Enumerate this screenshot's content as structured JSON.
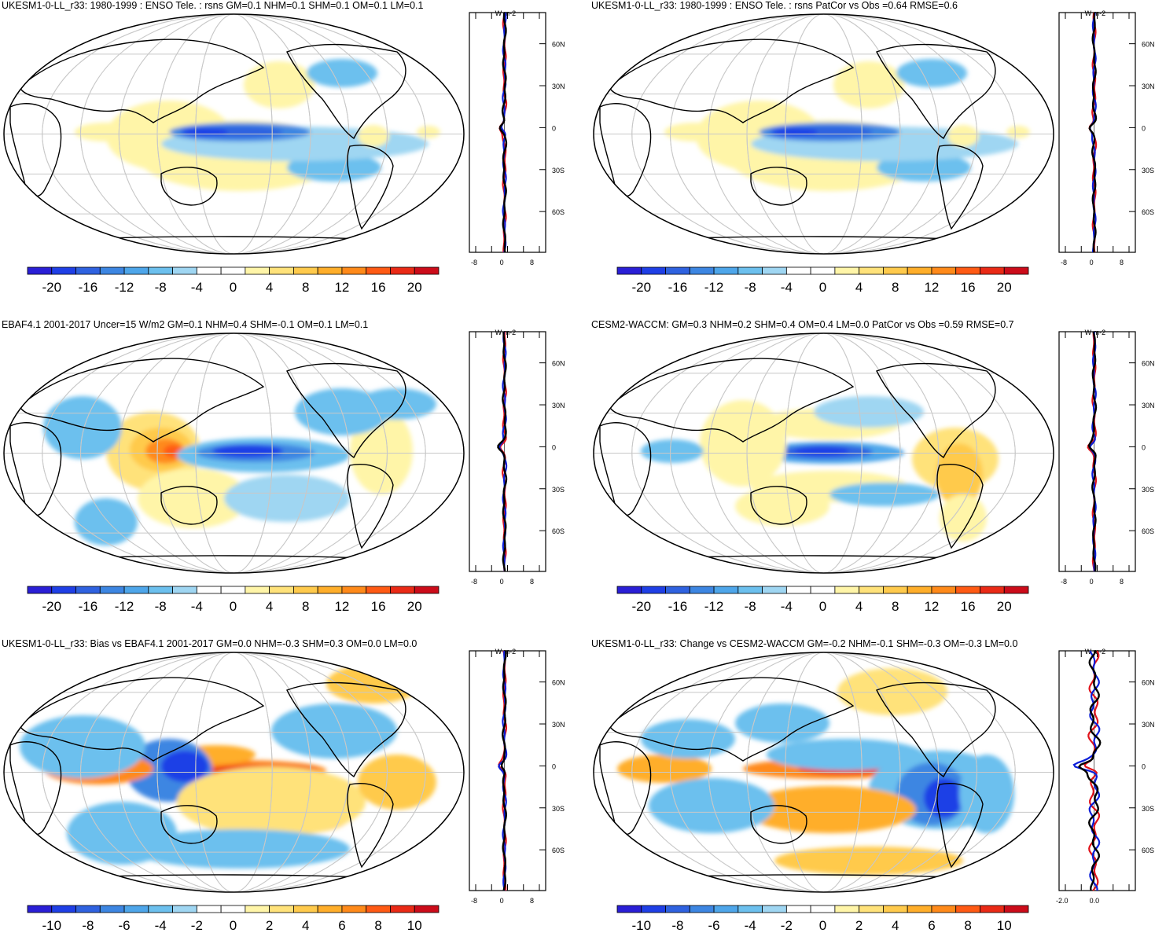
{
  "panels": [
    {
      "title": "UKESM1-0-LL_r33: 1980-1999 : ENSO Tele. : rsns GM=0.1 NHM=0.1 SHM=0.1 OM=0.1 LM=0.1",
      "colorbar_labels": [
        "-20",
        "-16",
        "-12",
        "-8",
        "-4",
        "0",
        "4",
        "8",
        "12",
        "16",
        "20"
      ],
      "zonal_units": "W m-2",
      "zonal_x_ticks": [
        "-8",
        "0",
        "8"
      ],
      "lat_labels": [
        "60N",
        "30N",
        "0",
        "30S",
        "60S"
      ],
      "pattern": "enso"
    },
    {
      "title": "UKESM1-0-LL_r33: 1980-1999 : ENSO Tele. : rsns PatCor vs Obs =0.64 RMSE=0.6",
      "colorbar_labels": [
        "-20",
        "-16",
        "-12",
        "-8",
        "-4",
        "0",
        "4",
        "8",
        "12",
        "16",
        "20"
      ],
      "zonal_units": "W m-2",
      "zonal_x_ticks": [
        "-8",
        "0",
        "8"
      ],
      "lat_labels": [
        "60N",
        "30N",
        "0",
        "30S",
        "60S"
      ],
      "pattern": "enso"
    },
    {
      "title": "EBAF4.1 2001-2017 Uncer=15 W/m2 GM=0.1 NHM=0.4 SHM=-0.1 OM=0.1 LM=0.1",
      "colorbar_labels": [
        "-20",
        "-16",
        "-12",
        "-8",
        "-4",
        "0",
        "4",
        "8",
        "12",
        "16",
        "20"
      ],
      "zonal_units": "W m-2",
      "zonal_x_ticks": [
        "-8",
        "0",
        "8"
      ],
      "lat_labels": [
        "60N",
        "30N",
        "0",
        "30S",
        "60S"
      ],
      "pattern": "obs"
    },
    {
      "title": "CESM2-WACCM: GM=0.3 NHM=0.2 SHM=0.4 OM=0.4 LM=0.0 PatCor vs Obs =0.59 RMSE=0.7",
      "colorbar_labels": [
        "-20",
        "-16",
        "-12",
        "-8",
        "-4",
        "0",
        "4",
        "8",
        "12",
        "16",
        "20"
      ],
      "zonal_units": "W m-2",
      "zonal_x_ticks": [
        "-8",
        "0",
        "8"
      ],
      "lat_labels": [
        "60N",
        "30N",
        "0",
        "30S",
        "60S"
      ],
      "pattern": "cesm"
    },
    {
      "title": "UKESM1-0-LL_r33: Bias vs EBAF4.1 2001-2017 GM=0.0 NHM=-0.3 SHM=0.3 OM=0.0 LM=0.0",
      "colorbar_labels": [
        "-10",
        "-8",
        "-6",
        "-4",
        "-2",
        "0",
        "2",
        "4",
        "6",
        "8",
        "10"
      ],
      "zonal_units": "W m-2",
      "zonal_x_ticks": [
        "-8",
        "0",
        "8"
      ],
      "lat_labels": [
        "60N",
        "30N",
        "0",
        "30S",
        "60S"
      ],
      "pattern": "bias"
    },
    {
      "title": "UKESM1-0-LL_r33: Change vs CESM2-WACCM GM=-0.2 NHM=-0.1 SHM=-0.3 OM=-0.3 LM=0.0",
      "colorbar_labels": [
        "-10",
        "-8",
        "-6",
        "-4",
        "-2",
        "0",
        "2",
        "4",
        "6",
        "8",
        "10"
      ],
      "zonal_units": "W m-2",
      "zonal_x_ticks": [
        "-2.0",
        "0.0"
      ],
      "lat_labels": [
        "60N",
        "30N",
        "0",
        "30S",
        "60S"
      ],
      "pattern": "change"
    }
  ],
  "colors": {
    "palette": [
      "#2a1fd6",
      "#1f3fe6",
      "#2f62e0",
      "#3d86e2",
      "#4ea6ea",
      "#6cc0ee",
      "#9fd6f2",
      "#ffffff",
      "#ffffff",
      "#fff5a8",
      "#ffe27a",
      "#ffca4c",
      "#ffae2a",
      "#ff8a1a",
      "#ff5a14",
      "#ea2a16",
      "#cc0c1a"
    ],
    "ocean_grid": "#c8c8c8",
    "zonal_model": "#0a1ed8",
    "zonal_obs": "#e0141c",
    "zonal_mean": "#000000"
  },
  "chart_data": [
    {
      "type": "heatmap",
      "title": "UKESM1-0-LL_r33: 1980-1999 : ENSO Tele. : rsns GM=0.1 NHM=0.1 SHM=0.1 OM=0.1 LM=0.1",
      "colorbar_range": [
        -20,
        20
      ],
      "zonal_profile_latitudes": [
        "60N",
        "30N",
        "0",
        "30S",
        "60S"
      ],
      "zonal_xlim": [
        -8,
        8
      ]
    },
    {
      "type": "heatmap",
      "title": "UKESM1-0-LL_r33: 1980-1999 : ENSO Tele. : rsns PatCor vs Obs =0.64 RMSE=0.6",
      "colorbar_range": [
        -20,
        20
      ],
      "zonal_xlim": [
        -8,
        8
      ]
    },
    {
      "type": "heatmap",
      "title": "EBAF4.1 2001-2017 Uncer=15 W/m2 GM=0.1 NHM=0.4 SHM=-0.1 OM=0.1 LM=0.1",
      "colorbar_range": [
        -20,
        20
      ],
      "zonal_xlim": [
        -8,
        8
      ]
    },
    {
      "type": "heatmap",
      "title": "CESM2-WACCM: GM=0.3 NHM=0.2 SHM=0.4 OM=0.4 LM=0.0 PatCor vs Obs =0.59 RMSE=0.7",
      "colorbar_range": [
        -20,
        20
      ],
      "zonal_xlim": [
        -8,
        8
      ]
    },
    {
      "type": "heatmap",
      "title": "UKESM1-0-LL_r33: Bias vs EBAF4.1 2001-2017 GM=0.0 NHM=-0.3 SHM=0.3 OM=0.0 LM=0.0",
      "colorbar_range": [
        -10,
        10
      ],
      "zonal_xlim": [
        -8,
        8
      ]
    },
    {
      "type": "heatmap",
      "title": "UKESM1-0-LL_r33: Change vs CESM2-WACCM GM=-0.2 NHM=-0.1 SHM=-0.3 OM=-0.3 LM=0.0",
      "colorbar_range": [
        -10,
        10
      ],
      "zonal_x_ticks": [
        "-2.0",
        "0.0"
      ]
    }
  ]
}
